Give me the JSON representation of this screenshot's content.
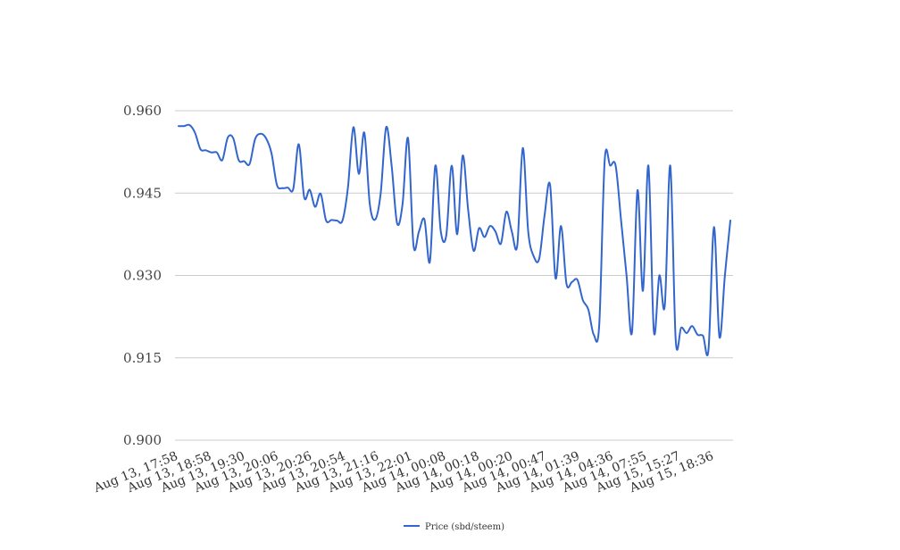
{
  "chart_data": {
    "type": "line",
    "title": "",
    "xlabel": "",
    "ylabel": "",
    "ylim": [
      0.9,
      0.96
    ],
    "y_ticks": [
      "0.960",
      "0.945",
      "0.930",
      "0.915",
      "0.900"
    ],
    "y_tick_values": [
      0.96,
      0.945,
      0.93,
      0.915,
      0.9
    ],
    "x_tick_labels": [
      "Aug 13, 17:58",
      "Aug 13, 18:58",
      "Aug 13, 19:30",
      "Aug 13, 20:06",
      "Aug 13, 20:26",
      "Aug 13, 20:54",
      "Aug 13, 21:16",
      "Aug 13, 22:01",
      "Aug 14, 00:08",
      "Aug 14, 00:18",
      "Aug 14, 00:20",
      "Aug 14, 00:47",
      "Aug 14, 01:39",
      "Aug 14, 04:36",
      "Aug 14, 07:55",
      "Aug 15, 15:27",
      "Aug 15, 18:36"
    ],
    "grid": true,
    "legend_position": "bottom",
    "series": [
      {
        "name": "Price (sbd/steem)",
        "color": "#3366cc",
        "values": [
          0.9572,
          0.9572,
          0.9574,
          0.956,
          0.953,
          0.9528,
          0.9524,
          0.9524,
          0.951,
          0.9551,
          0.955,
          0.951,
          0.9508,
          0.9503,
          0.9548,
          0.9558,
          0.955,
          0.9523,
          0.9465,
          0.9459,
          0.946,
          0.9458,
          0.9539,
          0.9442,
          0.9456,
          0.9425,
          0.9449,
          0.94,
          0.9401,
          0.94,
          0.94,
          0.946,
          0.957,
          0.9485,
          0.956,
          0.943,
          0.9402,
          0.945,
          0.957,
          0.95,
          0.9395,
          0.943,
          0.955,
          0.9355,
          0.938,
          0.9402,
          0.9325,
          0.95,
          0.938,
          0.9373,
          0.95,
          0.9375,
          0.9518,
          0.942,
          0.9345,
          0.9386,
          0.937,
          0.939,
          0.938,
          0.9358,
          0.9416,
          0.938,
          0.9355,
          0.9532,
          0.938,
          0.9335,
          0.933,
          0.941,
          0.9465,
          0.9295,
          0.939,
          0.9285,
          0.9288,
          0.9292,
          0.9255,
          0.9238,
          0.9192,
          0.921,
          0.951,
          0.95,
          0.95,
          0.94,
          0.93,
          0.9197,
          0.9455,
          0.9272,
          0.95,
          0.9198,
          0.93,
          0.9245,
          0.95,
          0.9182,
          0.9205,
          0.9195,
          0.9208,
          0.9192,
          0.919,
          0.9165,
          0.9388,
          0.9188,
          0.93,
          0.94
        ]
      }
    ]
  }
}
